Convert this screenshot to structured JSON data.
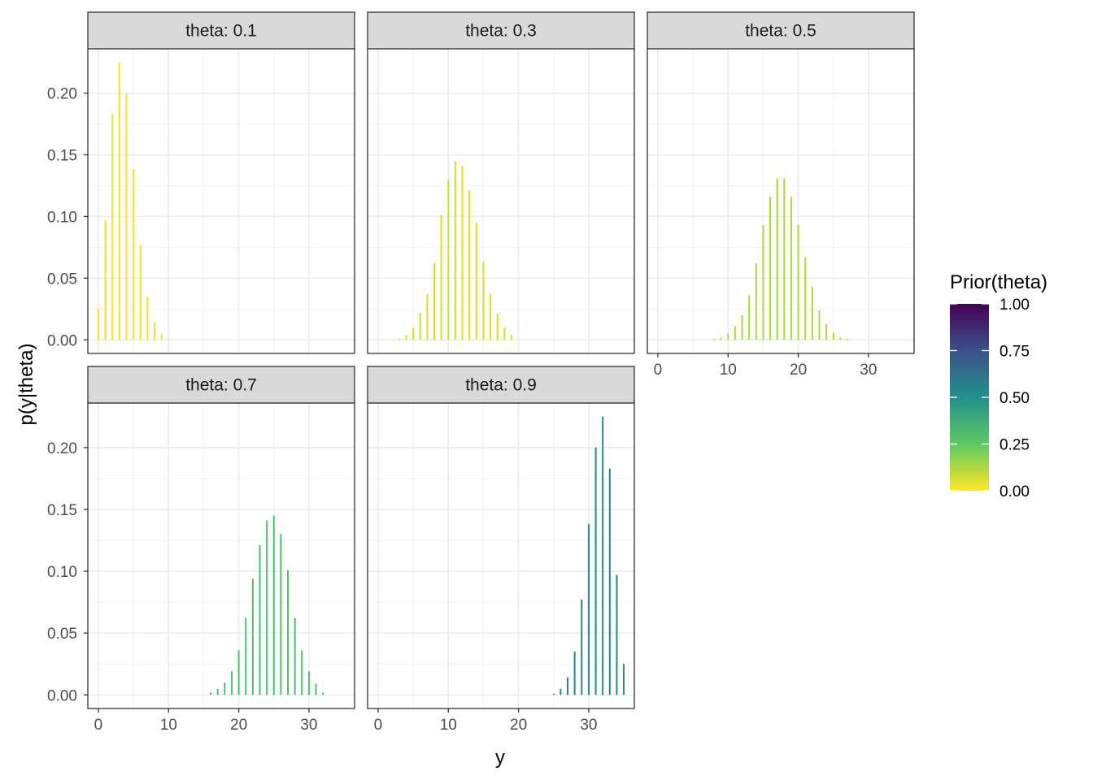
{
  "chart_data": {
    "type": "bar",
    "xlabel": "y",
    "ylabel": "p(y|theta)",
    "x_ticks": [
      "0",
      "10",
      "20",
      "30"
    ],
    "y_ticks": [
      "0.00",
      "0.05",
      "0.10",
      "0.15",
      "0.20"
    ],
    "xlim": [
      -1.5,
      36.5
    ],
    "ylim": [
      -0.011,
      0.236
    ],
    "grid": true,
    "legend": {
      "title": "Prior(theta)",
      "position": "right",
      "labels": [
        "1.00",
        "0.75",
        "0.50",
        "0.25",
        "0.00"
      ],
      "colors": {
        "v0": "#FDE725",
        "v025": "#5EC962",
        "v05": "#21918C",
        "v075": "#3B528B",
        "v1": "#440154"
      }
    },
    "panels": [
      {
        "strip": "theta: 0.1",
        "color": "#F3E61E",
        "x": [
          0,
          1,
          2,
          3,
          4,
          5,
          6,
          7,
          8,
          9,
          10
        ],
        "values": [
          0.025,
          0.097,
          0.183,
          0.225,
          0.2,
          0.138,
          0.077,
          0.035,
          0.014,
          0.005,
          0.001
        ]
      },
      {
        "strip": "theta: 0.3",
        "color": "#D5E21A",
        "x": [
          3,
          4,
          5,
          6,
          7,
          8,
          9,
          10,
          11,
          12,
          13,
          14,
          15,
          16,
          17,
          18,
          19
        ],
        "values": [
          0.001,
          0.004,
          0.01,
          0.022,
          0.037,
          0.062,
          0.101,
          0.13,
          0.145,
          0.141,
          0.121,
          0.095,
          0.063,
          0.037,
          0.021,
          0.01,
          0.004
        ]
      },
      {
        "strip": "theta: 0.5",
        "color": "#A8DB34",
        "x": [
          8,
          9,
          10,
          11,
          12,
          13,
          14,
          15,
          16,
          17,
          18,
          19,
          20,
          21,
          22,
          23,
          24,
          25,
          26,
          27
        ],
        "values": [
          0.001,
          0.002,
          0.005,
          0.011,
          0.02,
          0.036,
          0.062,
          0.093,
          0.116,
          0.131,
          0.131,
          0.116,
          0.093,
          0.067,
          0.043,
          0.024,
          0.013,
          0.006,
          0.002,
          0.001
        ]
      },
      {
        "strip": "theta: 0.7",
        "color": "#4AC16D",
        "x": [
          16,
          17,
          18,
          19,
          20,
          21,
          22,
          23,
          24,
          25,
          26,
          27,
          28,
          29,
          30,
          31,
          32
        ],
        "values": [
          0.002,
          0.005,
          0.01,
          0.019,
          0.036,
          0.062,
          0.094,
          0.121,
          0.141,
          0.145,
          0.13,
          0.101,
          0.062,
          0.036,
          0.019,
          0.009,
          0.002
        ]
      },
      {
        "strip": "theta: 0.9",
        "color": "#25858E",
        "x": [
          25,
          26,
          27,
          28,
          29,
          30,
          31,
          32,
          33,
          34,
          35
        ],
        "values": [
          0.001,
          0.005,
          0.014,
          0.035,
          0.077,
          0.138,
          0.2,
          0.225,
          0.183,
          0.097,
          0.025
        ]
      }
    ]
  }
}
